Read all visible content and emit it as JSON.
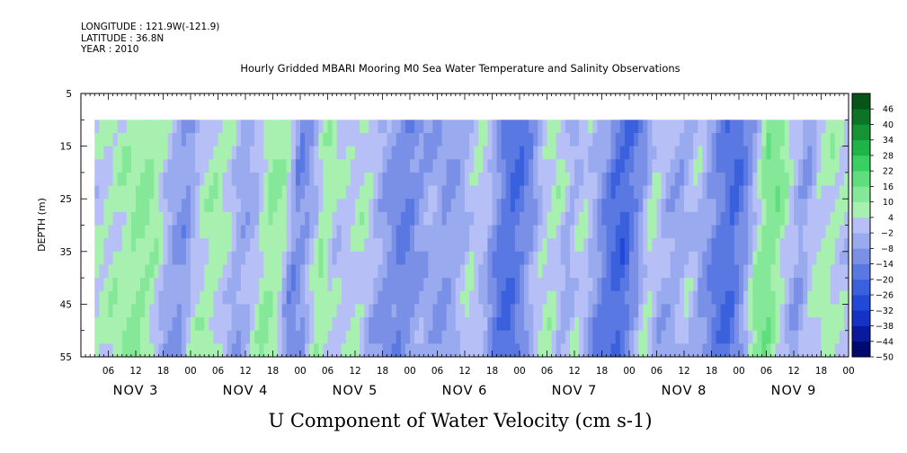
{
  "header": {
    "longitude": "LONGITUDE : 121.9W(-121.9)",
    "latitude": "LATITUDE : 36.8N",
    "year": "YEAR : 2010"
  },
  "chart_data": {
    "type": "heatmap",
    "title": "Hourly Gridded MBARI Mooring M0 Sea Water Temperature and Salinity Observations",
    "xlabel": "U Component of Water Velocity (cm s-1)",
    "ylabel": "DEPTH (m)",
    "ylim": [
      5,
      55
    ],
    "y_inverted": true,
    "y_ticks": [
      5,
      15,
      25,
      35,
      45,
      55
    ],
    "x_hour_ticks": [
      "06",
      "12",
      "18",
      "00",
      "06",
      "12",
      "18",
      "00",
      "06",
      "12",
      "18",
      "00",
      "06",
      "12",
      "18",
      "00",
      "06",
      "12",
      "18",
      "00",
      "06",
      "12",
      "18",
      "00",
      "06",
      "12",
      "18",
      "00"
    ],
    "day_labels": [
      "NOV 3",
      "NOV 4",
      "NOV 5",
      "NOV 6",
      "NOV 7",
      "NOV 8",
      "NOV 9"
    ],
    "xlim_hours_from_nov3_00": [
      0,
      168
    ],
    "data_start_hours_from_nov3_00": 3,
    "data_top_depth": 10,
    "colorbar": {
      "levels": [
        -50,
        -44,
        -38,
        -32,
        -26,
        -20,
        -14,
        -8,
        -2,
        4,
        10,
        16,
        22,
        28,
        34,
        40,
        46
      ],
      "range": [
        -50,
        52
      ]
    },
    "column_profile_u_cm_s": [
      {
        "hour": 3,
        "u": 2
      },
      {
        "hour": 6,
        "u": 4
      },
      {
        "hour": 9,
        "u": 6
      },
      {
        "hour": 12,
        "u": 8
      },
      {
        "hour": 15,
        "u": 12
      },
      {
        "hour": 18,
        "u": 6
      },
      {
        "hour": 21,
        "u": -6
      },
      {
        "hour": 24,
        "u": -10
      },
      {
        "hour": 27,
        "u": 4
      },
      {
        "hour": 30,
        "u": 8
      },
      {
        "hour": 33,
        "u": 4
      },
      {
        "hour": 36,
        "u": -6
      },
      {
        "hour": 39,
        "u": -2
      },
      {
        "hour": 42,
        "u": 10
      },
      {
        "hour": 45,
        "u": 8
      },
      {
        "hour": 48,
        "u": -12
      },
      {
        "hour": 51,
        "u": -6
      },
      {
        "hour": 54,
        "u": 10
      },
      {
        "hour": 57,
        "u": 2
      },
      {
        "hour": 60,
        "u": 2
      },
      {
        "hour": 63,
        "u": 6
      },
      {
        "hour": 66,
        "u": -4
      },
      {
        "hour": 69,
        "u": -10
      },
      {
        "hour": 72,
        "u": -14
      },
      {
        "hour": 75,
        "u": -8
      },
      {
        "hour": 78,
        "u": -4
      },
      {
        "hour": 81,
        "u": -8
      },
      {
        "hour": 84,
        "u": -4
      },
      {
        "hour": 87,
        "u": 4
      },
      {
        "hour": 90,
        "u": -2
      },
      {
        "hour": 93,
        "u": -16
      },
      {
        "hour": 96,
        "u": -20
      },
      {
        "hour": 99,
        "u": -10
      },
      {
        "hour": 102,
        "u": 2
      },
      {
        "hour": 105,
        "u": 6
      },
      {
        "hour": 108,
        "u": -4
      },
      {
        "hour": 111,
        "u": 4
      },
      {
        "hour": 114,
        "u": -6
      },
      {
        "hour": 117,
        "u": -18
      },
      {
        "hour": 120,
        "u": -22
      },
      {
        "hour": 123,
        "u": -10
      },
      {
        "hour": 126,
        "u": 6
      },
      {
        "hour": 129,
        "u": -4
      },
      {
        "hour": 132,
        "u": -6
      },
      {
        "hour": 135,
        "u": 2
      },
      {
        "hour": 138,
        "u": -8
      },
      {
        "hour": 141,
        "u": -16
      },
      {
        "hour": 144,
        "u": -20
      },
      {
        "hour": 147,
        "u": -8
      },
      {
        "hour": 150,
        "u": 12
      },
      {
        "hour": 153,
        "u": 14
      },
      {
        "hour": 156,
        "u": 2
      },
      {
        "hour": 159,
        "u": -8
      },
      {
        "hour": 162,
        "u": 4
      },
      {
        "hour": 165,
        "u": 6
      },
      {
        "hour": 168,
        "u": 2
      }
    ]
  }
}
